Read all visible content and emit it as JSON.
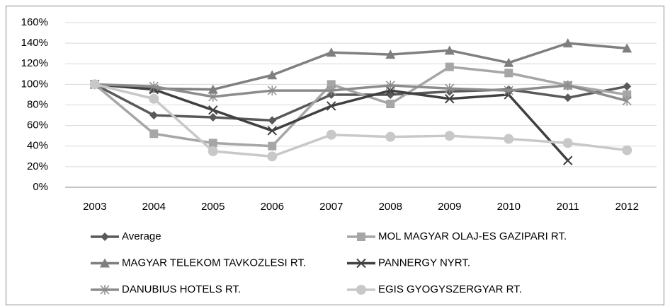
{
  "chart_data": {
    "type": "line",
    "categories": [
      "2003",
      "2004",
      "2005",
      "2006",
      "2007",
      "2008",
      "2009",
      "2010",
      "2011",
      "2012"
    ],
    "ylim": [
      0,
      160
    ],
    "yticks": [
      {
        "value": 0,
        "label": "0%"
      },
      {
        "value": 20,
        "label": "20%"
      },
      {
        "value": 40,
        "label": "40%"
      },
      {
        "value": 60,
        "label": "60%"
      },
      {
        "value": 80,
        "label": "80%"
      },
      {
        "value": 100,
        "label": "100%"
      },
      {
        "value": 120,
        "label": "120%"
      },
      {
        "value": 140,
        "label": "140%"
      },
      {
        "value": 160,
        "label": "160%"
      }
    ],
    "grid": true,
    "legend": "bottom",
    "series": [
      {
        "name": "Average",
        "color": "#595959",
        "marker": "diamond",
        "values": [
          100,
          70,
          68,
          65,
          90,
          90,
          93,
          95,
          87,
          98
        ]
      },
      {
        "name": "MOL MAGYAR OLAJ-ES GAZIPARI RT.",
        "color": "#a6a6a6",
        "marker": "square",
        "values": [
          100,
          52,
          43,
          40,
          100,
          81,
          117,
          111,
          99,
          90
        ]
      },
      {
        "name": "MAGYAR TELEKOM TAVKOZLESI RT.",
        "color": "#7f7f7f",
        "marker": "triangle",
        "values": [
          100,
          96,
          95,
          109,
          131,
          129,
          133,
          121,
          140,
          135
        ]
      },
      {
        "name": "PANNERGY NYRT.",
        "color": "#404040",
        "marker": "x",
        "values": [
          100,
          95,
          75,
          55,
          79,
          94,
          86,
          90,
          26,
          null
        ]
      },
      {
        "name": "DANUBIUS HOTELS RT.",
        "color": "#8c8c8c",
        "marker": "asterisk",
        "values": [
          100,
          98,
          88,
          94,
          94,
          99,
          96,
          94,
          99,
          84
        ]
      },
      {
        "name": "EGIS GYOGYSZERGYAR RT.",
        "color": "#c8c8c8",
        "marker": "circle",
        "values": [
          100,
          86,
          35,
          30,
          51,
          49,
          50,
          47,
          43,
          36
        ]
      }
    ]
  }
}
